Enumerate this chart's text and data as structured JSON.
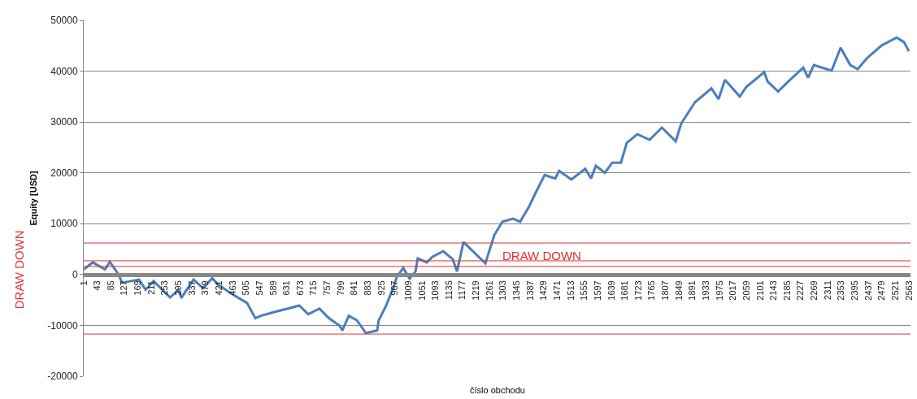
{
  "chart_data": {
    "type": "line",
    "xlabel": "číslo obchodu",
    "ylabel": "Equity [USD]",
    "x": [
      1,
      29,
      67,
      82,
      110,
      120,
      173,
      193,
      218,
      269,
      296,
      304,
      342,
      372,
      400,
      417,
      453,
      508,
      534,
      551,
      597,
      635,
      670,
      698,
      733,
      761,
      796,
      804,
      824,
      849,
      877,
      912,
      917,
      940,
      963,
      973,
      993,
      1013,
      1031,
      1038,
      1066,
      1084,
      1117,
      1147,
      1160,
      1180,
      1248,
      1276,
      1301,
      1334,
      1356,
      1384,
      1402,
      1432,
      1465,
      1477,
      1515,
      1558,
      1576,
      1591,
      1619,
      1642,
      1669,
      1687,
      1720,
      1758,
      1796,
      1839,
      1856,
      1899,
      1950,
      1972,
      1992,
      2038,
      2058,
      2114,
      2124,
      2157,
      2189,
      2235,
      2250,
      2268,
      2323,
      2351,
      2381,
      2404,
      2432,
      2477,
      2525,
      2548,
      2563
    ],
    "series": [
      {
        "color": "#4a7ebb",
        "values": [
          1000,
          2400,
          1000,
          2500,
          -100,
          -1600,
          -1000,
          -3000,
          -1300,
          -4500,
          -3000,
          -4600,
          -1000,
          -2700,
          -700,
          -1900,
          -3500,
          -5600,
          -8600,
          -8100,
          -7300,
          -6700,
          -6100,
          -7800,
          -6700,
          -8500,
          -10100,
          -11000,
          -8100,
          -9000,
          -11500,
          -11000,
          -9000,
          -6100,
          -2400,
          -500,
          1300,
          -800,
          600,
          3200,
          2400,
          3500,
          4600,
          3000,
          600,
          6400,
          2200,
          7800,
          10400,
          11000,
          10400,
          13400,
          15800,
          19600,
          18900,
          20400,
          18700,
          20800,
          18900,
          21400,
          20000,
          22000,
          22000,
          25900,
          27600,
          26500,
          28900,
          26200,
          29700,
          33900,
          36600,
          34500,
          38300,
          35000,
          36900,
          39800,
          38000,
          36000,
          38000,
          40700,
          38700,
          41200,
          40100,
          44600,
          41200,
          40400,
          42500,
          45000,
          46600,
          45700,
          43900
        ]
      }
    ],
    "xlim": [
      1,
      2568
    ],
    "xticks": [
      1,
      43,
      85,
      127,
      169,
      211,
      253,
      295,
      337,
      379,
      421,
      463,
      505,
      547,
      589,
      631,
      673,
      715,
      757,
      799,
      841,
      883,
      925,
      967,
      1009,
      1051,
      1093,
      1135,
      1177,
      1219,
      1261,
      1303,
      1345,
      1387,
      1429,
      1471,
      1513,
      1555,
      1597,
      1639,
      1681,
      1723,
      1765,
      1807,
      1849,
      1891,
      1933,
      1975,
      2017,
      2059,
      2101,
      2143,
      2185,
      2227,
      2269,
      2311,
      2353,
      2395,
      2437,
      2479,
      2521,
      2563
    ],
    "ylim": [
      -20000,
      50000
    ],
    "yticks": [
      -20000,
      -10000,
      0,
      10000,
      20000,
      30000,
      40000,
      50000
    ],
    "grid": "y",
    "marker": "none",
    "line_style": "solid",
    "ref_lines": [
      {
        "axis": "y",
        "value": 2700,
        "color": "#e03030"
      },
      {
        "axis": "y",
        "value": -11700,
        "color": "#e03030"
      },
      {
        "axis": "y",
        "value": 6200,
        "color": "#e03030"
      },
      {
        "axis": "y",
        "value": 1600,
        "color": "#e03030"
      }
    ],
    "annotations": [
      "DRAW DOWN",
      "DRAW DOWN"
    ]
  }
}
